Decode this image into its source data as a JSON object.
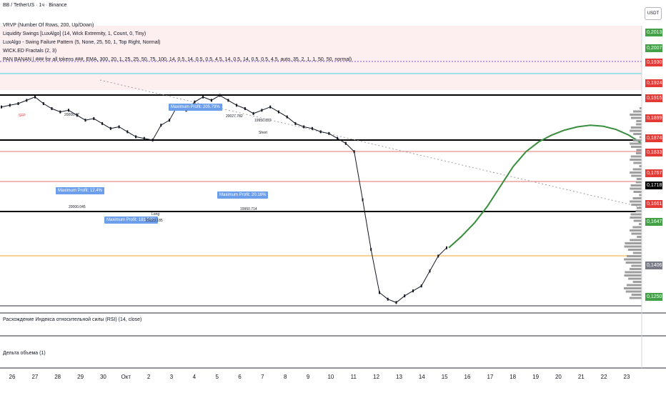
{
  "title": "BB / TetherUS · 1ч · Binance",
  "currency": "USDT",
  "indicators": [
    "VRVP (Number Of Rows, 200, Up/Down)",
    "Liquidity Swings [LuxAlgo] (14, Wick Extremity, 1, Count, 0, Tiny)",
    "LuxAlgo - Swing Failure Pattern (5, None, 25, 50, 1, Top Right, Normal)",
    "WICK.ED Fractals (2, 3)",
    "PAN BANAN | ### for all tokens ###, EMA, 300, 20, 1, 25, 25, 50, 75, 100, 14, 0.5, 14, 0.5, 0.5, 4.5, 14, 0.5, 14, 0.5, 0.5, 4.5, auto, 35, 2, 1, 1, 50, 50, normal)"
  ],
  "subpanes": [
    "Расхождение Индекса относительной силы (RSI) (14, close)",
    "Дельта объема (1)"
  ],
  "price_labels": [
    {
      "text": "0,2013",
      "color": "#43a047"
    },
    {
      "text": "0,2007",
      "color": "#43a047"
    },
    {
      "text": "0,1930",
      "color": "#e53935"
    },
    {
      "text": "0,1924",
      "color": "#e53935"
    },
    {
      "text": "0,1915",
      "color": "#e53935"
    },
    {
      "text": "0,1899",
      "color": "#e53935"
    },
    {
      "text": "0,1874",
      "color": "#e53935"
    },
    {
      "text": "0,1833",
      "color": "#e53935"
    },
    {
      "text": "0,1767",
      "color": "#e53935"
    },
    {
      "text": "0,1718",
      "color": "#000000"
    },
    {
      "text": "0,1661",
      "color": "#e53935"
    },
    {
      "text": "0,1647",
      "color": "#43a047"
    },
    {
      "text": "0,1406",
      "color": "#787b86"
    },
    {
      "text": "0,1250",
      "color": "#43a047"
    }
  ],
  "callouts": [
    "Maximum Profit: 205.79%",
    "Maximum Profit: 12.4%",
    "Maximum Profit: 181.54%",
    "Maximum Profit: 20.16%"
  ],
  "annotations": [
    "20000.47",
    "20027.782",
    "19950.822",
    "20000.045",
    "20029.185",
    "19950.714",
    "Long",
    "Short",
    "SFP"
  ],
  "chart_data": {
    "type": "line",
    "x_tick_labels": [
      "26",
      "27",
      "28",
      "29",
      "30",
      "Окт",
      "2",
      "3",
      "4",
      "5",
      "6",
      "7",
      "8",
      "9",
      "10",
      "11",
      "12",
      "13",
      "14",
      "15",
      "16",
      "17",
      "18",
      "19",
      "20",
      "21",
      "22",
      "23"
    ],
    "price_series": [
      0.178,
      0.1785,
      0.179,
      0.18,
      0.181,
      0.179,
      0.1775,
      0.1765,
      0.177,
      0.1755,
      0.174,
      0.1745,
      0.173,
      0.1715,
      0.172,
      0.1705,
      0.169,
      0.1685,
      0.168,
      0.1725,
      0.174,
      0.1785,
      0.177,
      0.1795,
      0.181,
      0.18,
      0.1815,
      0.18,
      0.1785,
      0.1775,
      0.176,
      0.177,
      0.178,
      0.1765,
      0.175,
      0.173,
      0.172,
      0.1715,
      0.1705,
      0.17,
      0.1685,
      0.167,
      0.1645,
      0.15,
      0.135,
      0.122,
      0.12,
      0.119,
      0.121,
      0.1225,
      0.124,
      0.1285,
      0.133,
      0.1355
    ],
    "projection_series": [
      0.1355,
      0.139,
      0.143,
      0.148,
      0.154,
      0.16,
      0.1645,
      0.1675,
      0.1695,
      0.171,
      0.172,
      0.1725,
      0.1722,
      0.1712,
      0.1695,
      0.167
    ],
    "y_axis_range": [
      0.118,
      0.2025
    ]
  }
}
